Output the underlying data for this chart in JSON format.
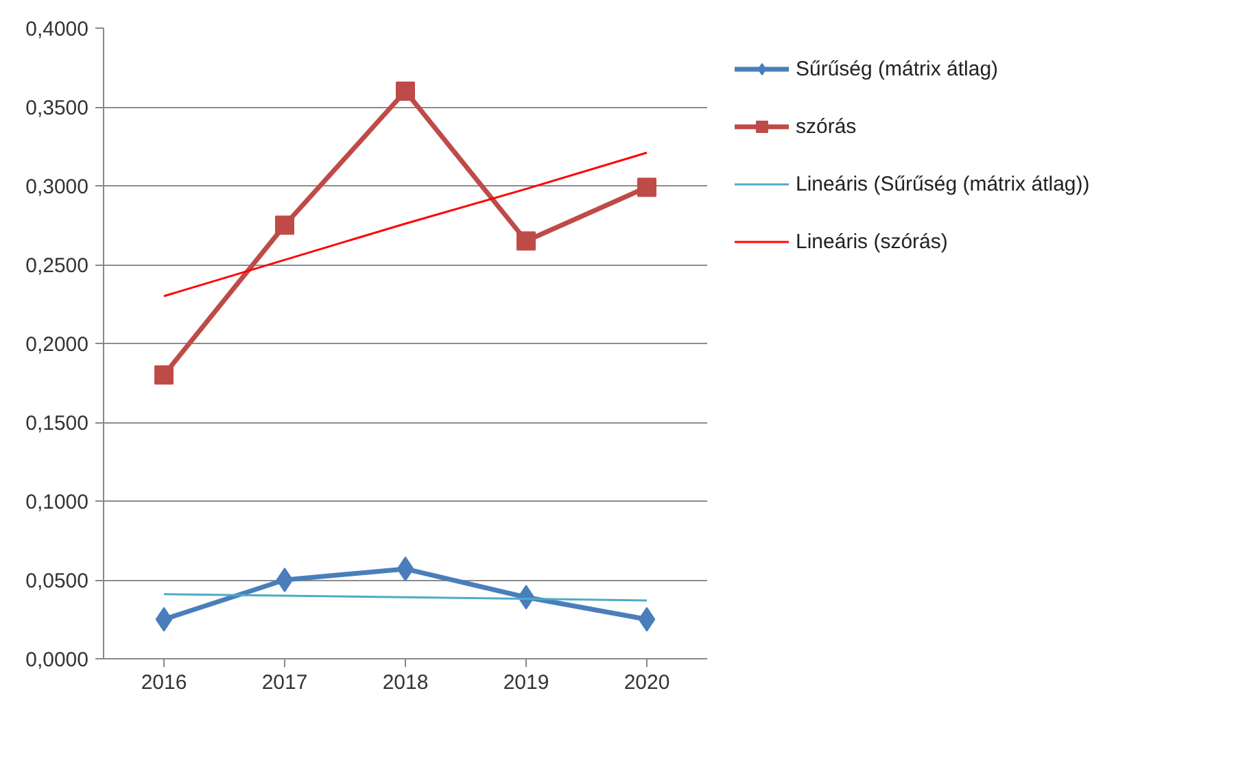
{
  "chart_data": {
    "type": "line",
    "categories": [
      "2016",
      "2017",
      "2018",
      "2019",
      "2020"
    ],
    "series": [
      {
        "name": "Sűrűség (mátrix átlag)",
        "color": "#4a7ebb",
        "marker": "diamond",
        "values": [
          0.025,
          0.05,
          0.057,
          0.039,
          0.025
        ]
      },
      {
        "name": "szórás",
        "color": "#be4b48",
        "marker": "square",
        "values": [
          0.18,
          0.275,
          0.36,
          0.265,
          0.299
        ]
      },
      {
        "name": "Lineáris (Sűrűség (mátrix átlag))",
        "color": "#4bacc6",
        "marker": "none",
        "values": [
          0.041,
          0.04,
          0.039,
          0.038,
          0.037
        ]
      },
      {
        "name": "Lineáris (szórás)",
        "color": "#ff0000",
        "marker": "none",
        "values": [
          0.23,
          0.253,
          0.276,
          0.298,
          0.321
        ]
      }
    ],
    "ylim": [
      0,
      0.4
    ],
    "yticks": [
      {
        "value": 0,
        "label": "0,0000"
      },
      {
        "value": 0.05,
        "label": "0,0500"
      },
      {
        "value": 0.1,
        "label": "0,1000"
      },
      {
        "value": 0.15,
        "label": "0,1500"
      },
      {
        "value": 0.2,
        "label": "0,2000"
      },
      {
        "value": 0.25,
        "label": "0,2500"
      },
      {
        "value": 0.3,
        "label": "0,3000"
      },
      {
        "value": 0.35,
        "label": "0,3500"
      },
      {
        "value": 0.4,
        "label": "0,4000"
      }
    ],
    "grid": "y",
    "legend": "right"
  }
}
